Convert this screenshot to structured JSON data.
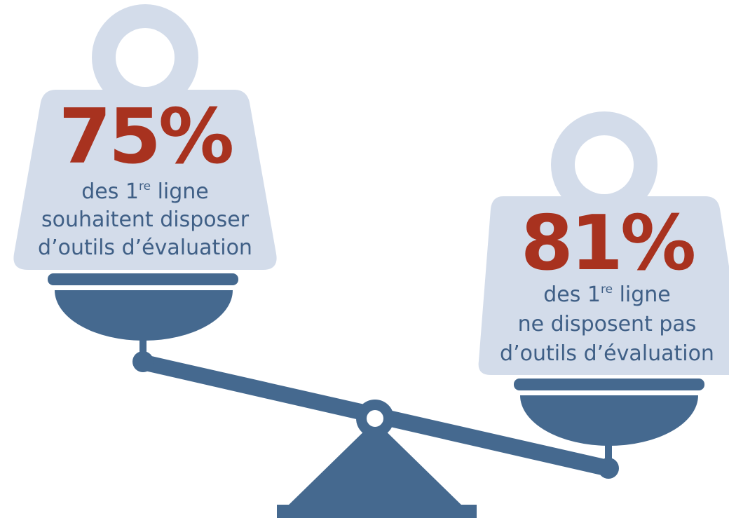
{
  "weights": [
    {
      "stat": "75%",
      "line1": {
        "before": "des 1",
        "sup": "re",
        "after": " ligne"
      },
      "line2": "souhaitent disposer",
      "line3": "d’outils d’évaluation"
    },
    {
      "stat": "81%",
      "line1": {
        "before": "des 1",
        "sup": "re",
        "after": " ligne"
      },
      "line2": "ne disposent pas",
      "line3": "d’outils d’évaluation"
    }
  ]
}
